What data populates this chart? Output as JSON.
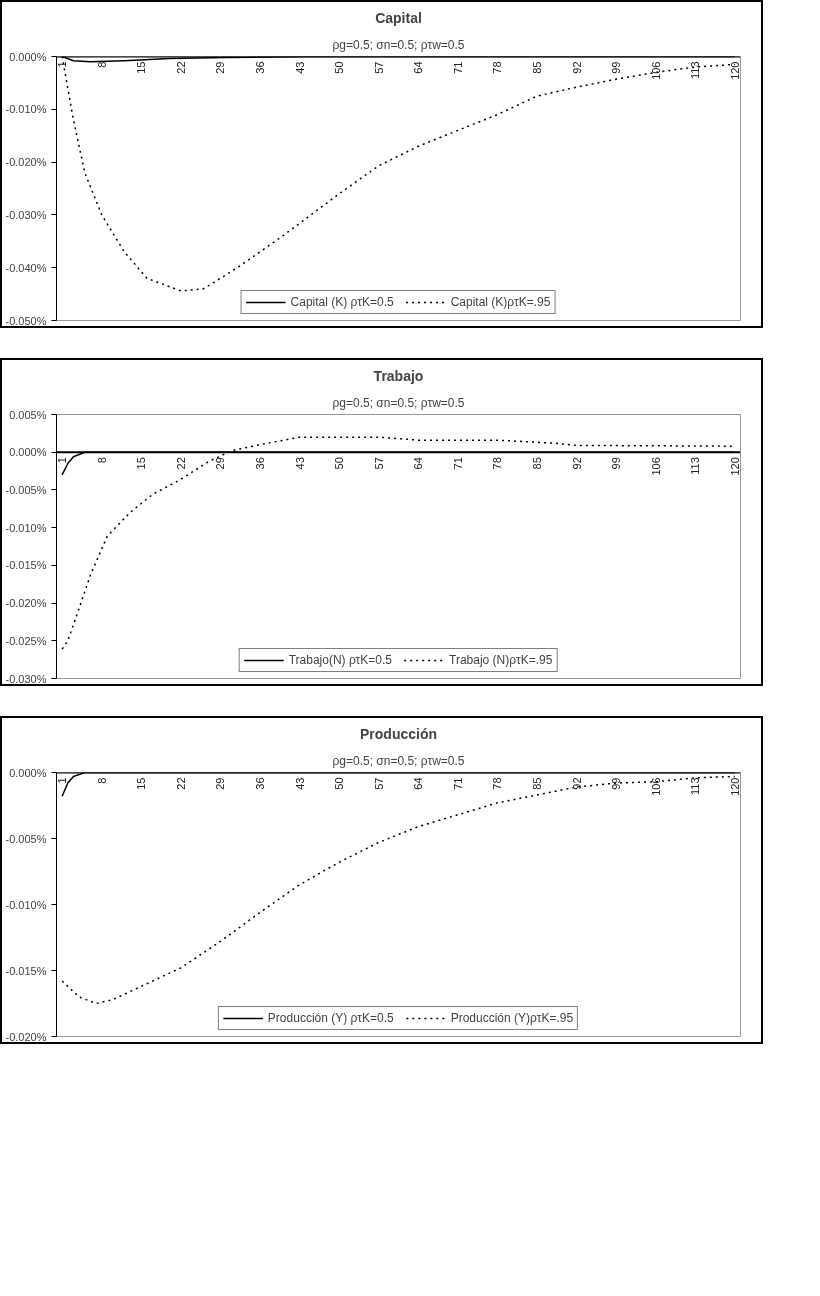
{
  "chart_data": [
    {
      "type": "line",
      "title": "Capital",
      "subtitle": "ρg=0.5; σn=0.5; ρτw=0.5",
      "legend": "bottom",
      "grid": false,
      "xlim": [
        0,
        121
      ],
      "xticks": [
        1,
        8,
        15,
        22,
        29,
        36,
        43,
        50,
        57,
        64,
        71,
        78,
        85,
        92,
        99,
        106,
        113,
        120
      ],
      "ylim": [
        -0.05,
        0
      ],
      "yticks": [
        {
          "value": 0,
          "label": "0.000%"
        },
        {
          "value": -0.01,
          "label": "-0.010%"
        },
        {
          "value": -0.02,
          "label": "-0.020%"
        },
        {
          "value": -0.03,
          "label": "-0.030%"
        },
        {
          "value": -0.04,
          "label": "-0.040%"
        },
        {
          "value": -0.05,
          "label": "-0.050%"
        }
      ],
      "series": [
        {
          "name": "Capital (K) ρτK=0.5",
          "color": "#000000",
          "line_style": "solid",
          "x": [
            1,
            3,
            6,
            12,
            20,
            30,
            45,
            120
          ],
          "values": [
            0,
            -0.0008,
            -0.001,
            -0.0008,
            -0.0004,
            -0.0002,
            0,
            0
          ]
        },
        {
          "name": "Capital (K)ρτK=.95",
          "color": "#000000",
          "line_style": "dotted",
          "x": [
            1,
            3,
            5,
            8,
            12,
            16,
            22,
            26,
            32,
            40,
            50,
            57,
            64,
            71,
            78,
            85,
            92,
            99,
            106,
            113,
            120
          ],
          "values": [
            0,
            -0.012,
            -0.022,
            -0.03,
            -0.037,
            -0.042,
            -0.0444,
            -0.044,
            -0.04,
            -0.034,
            -0.026,
            -0.0207,
            -0.017,
            -0.014,
            -0.011,
            -0.0075,
            -0.0058,
            -0.0043,
            -0.003,
            -0.002,
            -0.0015
          ]
        }
      ]
    },
    {
      "type": "line",
      "title": "Trabajo",
      "subtitle": "ρg=0.5; σn=0.5; ρτw=0.5",
      "legend": "bottom",
      "grid": false,
      "xlim": [
        0,
        121
      ],
      "xticks": [
        1,
        8,
        15,
        22,
        29,
        36,
        43,
        50,
        57,
        64,
        71,
        78,
        85,
        92,
        99,
        106,
        113,
        120
      ],
      "ylim": [
        -0.03,
        0.005
      ],
      "yticks": [
        {
          "value": 0.005,
          "label": "0.005%"
        },
        {
          "value": 0,
          "label": "0.000%"
        },
        {
          "value": -0.005,
          "label": "-0.005%"
        },
        {
          "value": -0.01,
          "label": "-0.010%"
        },
        {
          "value": -0.015,
          "label": "-0.015%"
        },
        {
          "value": -0.02,
          "label": "-0.020%"
        },
        {
          "value": -0.025,
          "label": "-0.025%"
        },
        {
          "value": -0.03,
          "label": "-0.030%"
        }
      ],
      "series": [
        {
          "name": "Trabajo(N) ρτK=0.5",
          "color": "#000000",
          "line_style": "solid",
          "x": [
            1,
            2,
            3,
            5,
            120
          ],
          "values": [
            -0.003,
            -0.0015,
            -0.0006,
            0,
            0
          ]
        },
        {
          "name": "Trabajo (N)ρτK=.95",
          "color": "#000000",
          "line_style": "dotted",
          "x": [
            1,
            2,
            4,
            6,
            9,
            13,
            17,
            22,
            27,
            31,
            36,
            43,
            57,
            64,
            78,
            88,
            92,
            120
          ],
          "values": [
            -0.0261,
            -0.025,
            -0.0207,
            -0.0163,
            -0.0111,
            -0.008,
            -0.0056,
            -0.0036,
            -0.0012,
            0.0002,
            0.001,
            0.002,
            0.002,
            0.0016,
            0.0016,
            0.0012,
            0.0009,
            0.0008
          ]
        }
      ]
    },
    {
      "type": "line",
      "title": "Producción",
      "subtitle": "ρg=0.5; σn=0.5; ρτw=0.5",
      "legend": "bottom",
      "grid": false,
      "xlim": [
        0,
        121
      ],
      "xticks": [
        1,
        8,
        15,
        22,
        29,
        36,
        43,
        50,
        57,
        64,
        71,
        78,
        85,
        92,
        99,
        106,
        113,
        120
      ],
      "ylim": [
        -0.02,
        0
      ],
      "yticks": [
        {
          "value": 0,
          "label": "0.000%"
        },
        {
          "value": -0.005,
          "label": "-0.005%"
        },
        {
          "value": -0.01,
          "label": "-0.010%"
        },
        {
          "value": -0.015,
          "label": "-0.015%"
        },
        {
          "value": -0.02,
          "label": "-0.020%"
        }
      ],
      "series": [
        {
          "name": "Producción (Y) ρτK=0.5",
          "color": "#000000",
          "line_style": "solid",
          "x": [
            1,
            2,
            3,
            5,
            120
          ],
          "values": [
            -0.0018,
            -0.0008,
            -0.0003,
            0,
            0
          ]
        },
        {
          "name": "Producción (Y)ρτK=.95",
          "color": "#000000",
          "line_style": "dotted",
          "x": [
            1,
            4,
            7,
            10,
            15,
            22,
            29,
            36,
            43,
            50,
            57,
            64,
            71,
            78,
            85,
            92,
            99,
            106,
            113,
            120
          ],
          "values": [
            -0.0158,
            -0.017,
            -0.0175,
            -0.0172,
            -0.0162,
            -0.0148,
            -0.0128,
            -0.0106,
            -0.0085,
            -0.0068,
            -0.0053,
            -0.0041,
            -0.0032,
            -0.0023,
            -0.0017,
            -0.0011,
            -0.0008,
            -0.0007,
            -0.0004,
            -0.0003
          ]
        }
      ]
    }
  ]
}
